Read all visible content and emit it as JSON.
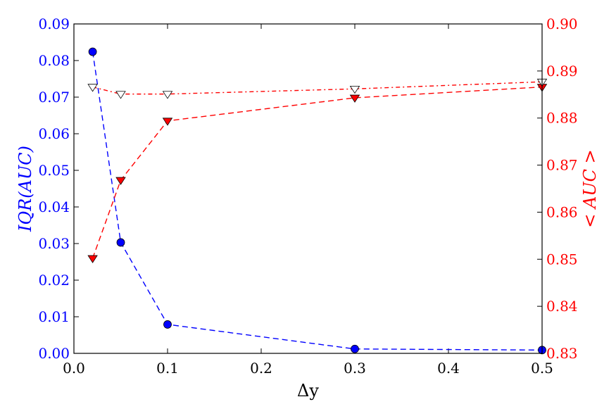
{
  "chart_data": {
    "type": "line",
    "xlabel": "Δy",
    "ylabel_left": "IQR(AUC)",
    "ylabel_right": "< AUC >",
    "xlim": [
      0.0,
      0.5
    ],
    "ylim_left": [
      0.0,
      0.09
    ],
    "ylim_right": [
      0.83,
      0.9
    ],
    "x_ticks": [
      "0.0",
      "0.1",
      "0.2",
      "0.3",
      "0.4",
      "0.5"
    ],
    "y_left_ticks": [
      "0.00",
      "0.01",
      "0.02",
      "0.03",
      "0.04",
      "0.05",
      "0.06",
      "0.07",
      "0.08",
      "0.09"
    ],
    "y_right_ticks": [
      "0.83",
      "0.84",
      "0.85",
      "0.86",
      "0.87",
      "0.88",
      "0.89",
      "0.90"
    ],
    "grid": false,
    "colors": {
      "left_axis": "#0000ff",
      "right_axis": "#ff0000",
      "frame": "#000000"
    },
    "series": [
      {
        "axis": "left",
        "color": "#0000ff",
        "line_style": "dashed",
        "marker": "circle-filled",
        "x": [
          0.02,
          0.05,
          0.1,
          0.3,
          0.5
        ],
        "values": [
          0.0824,
          0.0303,
          0.0079,
          0.0012,
          0.0009
        ]
      },
      {
        "axis": "right",
        "color": "#ff0000",
        "line_style": "dashed",
        "marker": "triangle-down-filled",
        "x": [
          0.02,
          0.05,
          0.1,
          0.3,
          0.5
        ],
        "values": [
          0.8502,
          0.8668,
          0.8794,
          0.8843,
          0.8866
        ]
      },
      {
        "axis": "right",
        "color": "#ff0000",
        "line_style": "dash-dot",
        "marker": "triangle-down-open",
        "x": [
          0.02,
          0.05,
          0.1,
          0.3,
          0.5
        ],
        "values": [
          0.8866,
          0.8851,
          0.8851,
          0.8862,
          0.8877
        ]
      }
    ]
  }
}
